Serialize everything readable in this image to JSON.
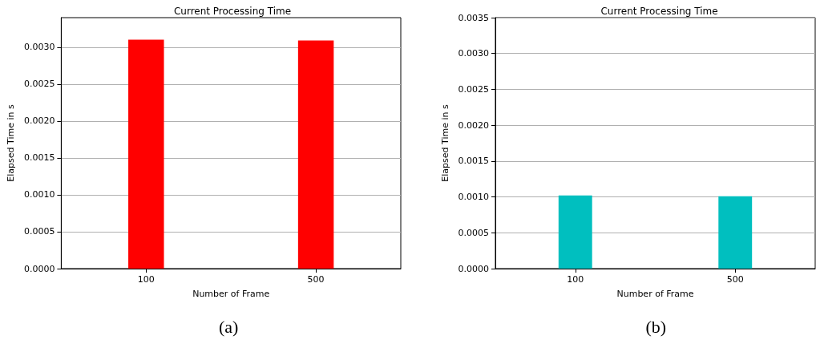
{
  "chart_data": [
    {
      "type": "bar",
      "title": "Current Processing Time",
      "xlabel": "Number of Frame",
      "ylabel": "Elapsed Time in s",
      "categories": [
        "100",
        "500"
      ],
      "values": [
        0.0031,
        0.00309
      ],
      "color": "#ff0000",
      "ylim": [
        0,
        0.0034
      ],
      "yticks": [
        {
          "value": 0,
          "label": "0.0000"
        },
        {
          "value": 0.0005,
          "label": "0.0005"
        },
        {
          "value": 0.001,
          "label": "0.0010"
        },
        {
          "value": 0.0015,
          "label": "0.0015"
        },
        {
          "value": 0.002,
          "label": "0.0020"
        },
        {
          "value": 0.0025,
          "label": "0.0025"
        },
        {
          "value": 0.003,
          "label": "0.0030"
        }
      ],
      "grid": "y",
      "annotations": [
        "(a)"
      ]
    },
    {
      "type": "bar",
      "title": "Current Processing Time",
      "xlabel": "Number of Frame",
      "ylabel": "Elapsed Time in s",
      "categories": [
        "100",
        "500"
      ],
      "values": [
        0.00102,
        0.00101
      ],
      "color": "#00bfbf",
      "ylim": [
        0,
        0.0035
      ],
      "yticks": [
        {
          "value": 0,
          "label": "0.0000"
        },
        {
          "value": 0.0005,
          "label": "0.0005"
        },
        {
          "value": 0.001,
          "label": "0.0010"
        },
        {
          "value": 0.0015,
          "label": "0.0015"
        },
        {
          "value": 0.002,
          "label": "0.0020"
        },
        {
          "value": 0.0025,
          "label": "0.0025"
        },
        {
          "value": 0.003,
          "label": "0.0030"
        },
        {
          "value": 0.0035,
          "label": "0.0035"
        }
      ],
      "grid": "y",
      "annotations": [
        "(b)"
      ]
    }
  ]
}
